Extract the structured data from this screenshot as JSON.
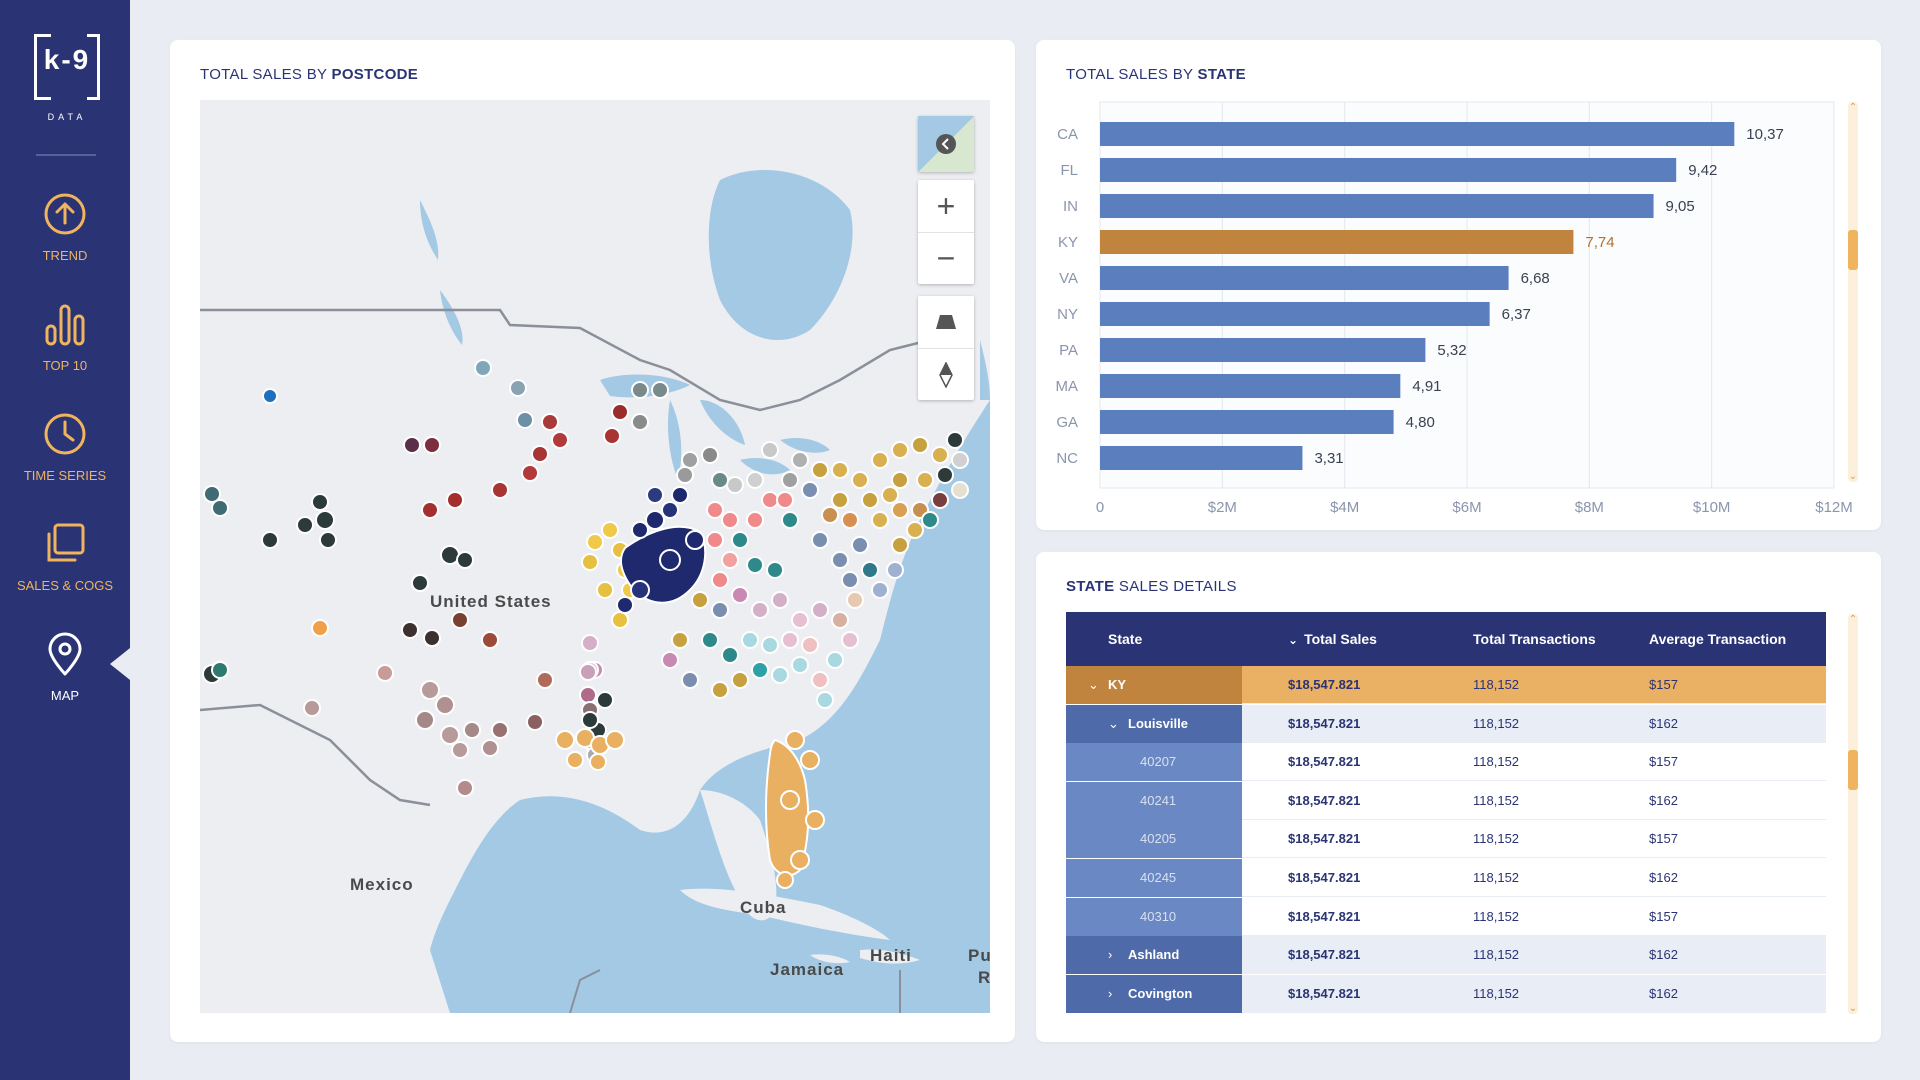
{
  "brand": {
    "logo_main": "k-9",
    "logo_sub": "DATA"
  },
  "nav": {
    "items": [
      {
        "label": "TREND",
        "icon": "arrow-up-circle-icon"
      },
      {
        "label": "TOP 10",
        "icon": "bar-chart-icon"
      },
      {
        "label": "TIME SERIES",
        "icon": "clock-icon"
      },
      {
        "label": "SALES & COGS",
        "icon": "layers-icon"
      },
      {
        "label": "MAP",
        "icon": "map-pin-icon",
        "active": true
      }
    ]
  },
  "map_panel": {
    "title_prefix": "TOTAL SALES BY",
    "title_strong": "POSTCODE",
    "labels": {
      "us": "United States",
      "mexico": "Mexico",
      "cuba": "Cuba",
      "haiti": "Haiti",
      "jamaica": "Jamaica",
      "pu": "Pu",
      "r": "R"
    },
    "controls": [
      "layers-icon",
      "zoom-in-icon",
      "zoom-out-icon",
      "tilt-icon",
      "compass-icon"
    ]
  },
  "bar_panel": {
    "title_prefix": "TOTAL SALES BY",
    "title_strong": "STATE"
  },
  "chart_data": {
    "type": "bar",
    "orientation": "horizontal",
    "categories": [
      "CA",
      "FL",
      "IN",
      "KY",
      "VA",
      "NY",
      "PA",
      "MA",
      "GA",
      "NC"
    ],
    "values": [
      10.37,
      9.42,
      9.05,
      7.74,
      6.68,
      6.37,
      5.32,
      4.91,
      4.8,
      3.31
    ],
    "value_labels": [
      "10,37",
      "9,42",
      "9,05",
      "7,74",
      "6,68",
      "6,37",
      "5,32",
      "4,91",
      "4,80",
      "3,31"
    ],
    "highlight": "KY",
    "unit": "$M",
    "xlim": [
      0,
      12
    ],
    "x_ticks": [
      "0",
      "$2M",
      "$4M",
      "$6M",
      "$8M",
      "$10M",
      "$12M"
    ],
    "colors": {
      "bar": "#5b7fbe",
      "highlight": "#c0843f",
      "highlight_label": "#b5702e"
    },
    "grid": true
  },
  "table_panel": {
    "title_strong": "STATE",
    "title_suffix": "SALES DETAILS",
    "columns": [
      "State",
      "Total Sales",
      "Total Transactions",
      "Average Transaction"
    ],
    "rows": [
      {
        "level": 0,
        "state": "KY",
        "expander": "⌄",
        "total_sales": "$18,547.821",
        "transactions": "118,152",
        "avg": "$157"
      },
      {
        "level": 1,
        "state": "Louisville",
        "expander": "⌄",
        "total_sales": "$18,547.821",
        "transactions": "118,152",
        "avg": "$162"
      },
      {
        "level": 2,
        "state": "40207",
        "expander": "",
        "total_sales": "$18,547.821",
        "transactions": "118,152",
        "avg": "$157"
      },
      {
        "level": 2,
        "state": "40241",
        "expander": "",
        "total_sales": "$18,547.821",
        "transactions": "118,152",
        "avg": "$162"
      },
      {
        "level": 2,
        "state": "40205",
        "expander": "",
        "total_sales": "$18,547.821",
        "transactions": "118,152",
        "avg": "$157"
      },
      {
        "level": 2,
        "state": "40245",
        "expander": "",
        "total_sales": "$18,547.821",
        "transactions": "118,152",
        "avg": "$162"
      },
      {
        "level": 2,
        "state": "40310",
        "expander": "",
        "total_sales": "$18,547.821",
        "transactions": "118,152",
        "avg": "$157"
      },
      {
        "level": 1,
        "state": "Ashland",
        "expander": "›",
        "total_sales": "$18,547.821",
        "transactions": "118,152",
        "avg": "$162"
      },
      {
        "level": 1,
        "state": "Covington",
        "expander": "›",
        "total_sales": "$18,547.821",
        "transactions": "118,152",
        "avg": "$162"
      }
    ]
  },
  "colors": {
    "sidebar": "#2a3474",
    "accent": "#f0b35e",
    "bar": "#5b7fbe",
    "highlight": "#c0843f",
    "table_header": "#2a3474",
    "row_ky": "#eab063",
    "row_ky_first": "#c0843f",
    "row_city_first": "#4f6aa8",
    "row_zip_first": "#6a88c4",
    "row_city_bg": "#e8edf6"
  }
}
